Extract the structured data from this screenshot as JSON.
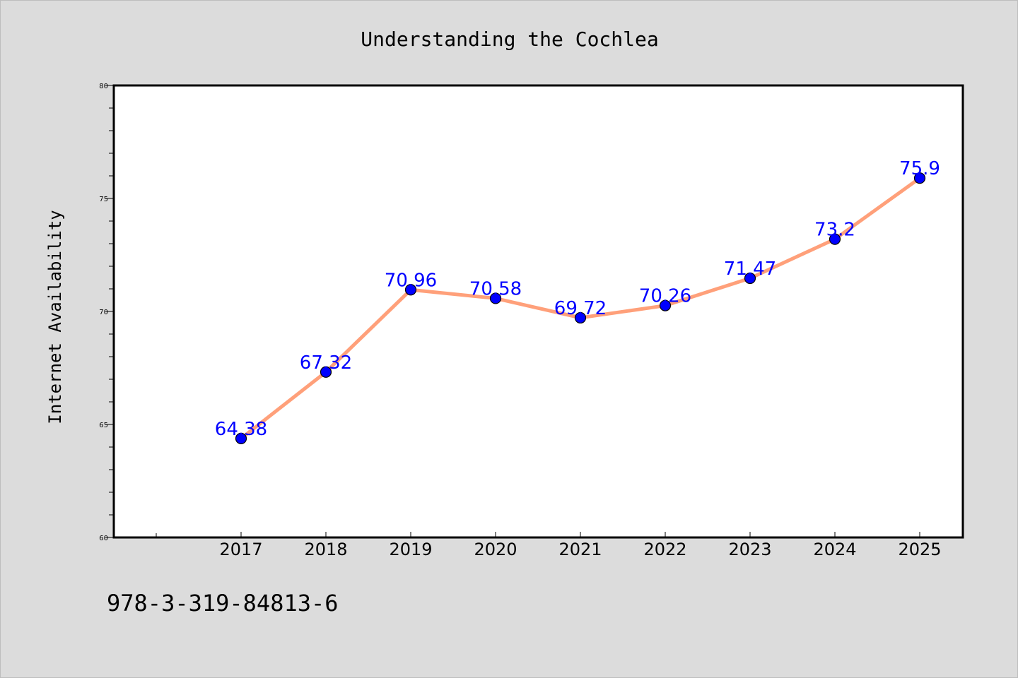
{
  "chart_data": {
    "type": "line",
    "title": "Understanding the Cochlea",
    "xlabel": "",
    "ylabel": "Internet Availability",
    "categories": [
      "2017",
      "2018",
      "2019",
      "2020",
      "2021",
      "2022",
      "2023",
      "2024",
      "2025"
    ],
    "series": [
      {
        "values": [
          64.38,
          67.32,
          70.96,
          70.58,
          69.72,
          70.26,
          71.47,
          73.2,
          75.9
        ],
        "data_labels": [
          "64.38",
          "67.32",
          "70.96",
          "70.58",
          "69.72",
          "70.26",
          "71.47",
          "73.2",
          "75.9"
        ]
      }
    ],
    "ylim": [
      60,
      80
    ],
    "yticks": [
      60,
      65,
      70,
      75,
      80
    ],
    "ytick_labels": [
      "60",
      "65",
      "70",
      "75",
      "80"
    ],
    "grid": false,
    "legend": "none",
    "colors": {
      "background": "#dcdcdc",
      "plot_background": "#ffffff",
      "line": "#ffa07a",
      "marker": "#0000ff",
      "data_label": "#0000ff"
    }
  },
  "footer_text": "978-3-319-84813-6"
}
